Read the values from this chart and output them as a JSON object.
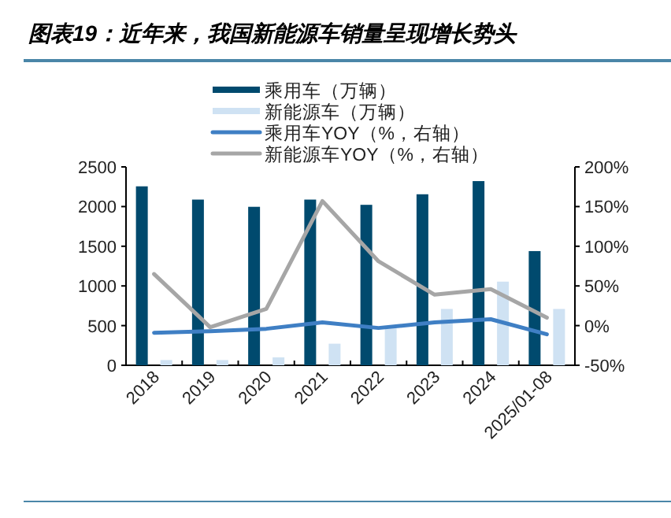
{
  "chart_data": {
    "type": "bar",
    "title": "图表19：近年来，我国新能源车销量呈现增长势头",
    "categories": [
      "2018",
      "2019",
      "2020",
      "2021",
      "2022",
      "2023",
      "2024",
      "2025/01-08"
    ],
    "series": [
      {
        "name": "乘用车（万辆）",
        "color": "#004a6e",
        "values": [
          2255,
          2088,
          1997,
          2088,
          2022,
          2155,
          2321,
          1439
        ]
      },
      {
        "name": "新能源车（万辆）",
        "color": "#cfe2f3",
        "values": [
          66,
          66,
          100,
          272,
          464,
          710,
          1054,
          710
        ]
      },
      {
        "name": "乘用车YOY（%，右轴）",
        "type": "line",
        "axis": "y2",
        "color": "#3f7fc4",
        "values": [
          -9,
          -7,
          -4,
          4,
          -3,
          4,
          8,
          -11
        ]
      },
      {
        "name": "新能源车YOY（%，右轴）",
        "type": "line",
        "axis": "y2",
        "color": "#a6a6a6",
        "values": [
          65,
          -2,
          21,
          157,
          81,
          39,
          46,
          10
        ]
      }
    ],
    "ylim": [
      0,
      2500
    ],
    "yticks": [
      0,
      500,
      1000,
      1500,
      2000,
      2500
    ],
    "y2lim": [
      -50,
      200
    ],
    "y2ticks": [
      {
        "value": -50,
        "label": "-50%"
      },
      {
        "value": 0,
        "label": "0%"
      },
      {
        "value": 50,
        "label": "50%"
      },
      {
        "value": 100,
        "label": "100%"
      },
      {
        "value": 150,
        "label": "150%"
      },
      {
        "value": 200,
        "label": "200%"
      }
    ],
    "legend": "top",
    "grid": false
  }
}
